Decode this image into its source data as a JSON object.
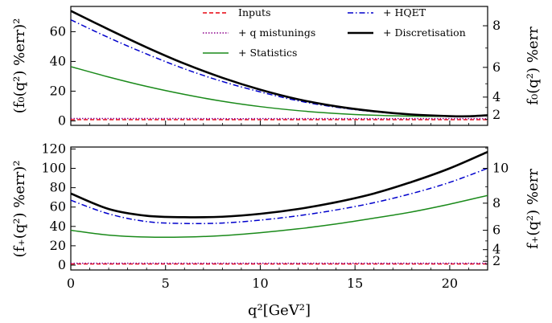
{
  "figure": {
    "xlabel": "q²[GeV²]"
  },
  "legend": {
    "items": [
      {
        "key": "inputs",
        "label": "Inputs"
      },
      {
        "key": "qmis",
        "label": "+ q mistunings"
      },
      {
        "key": "stats",
        "label": "+ Statistics"
      },
      {
        "key": "hqet",
        "label": "+ HQET"
      },
      {
        "key": "disc",
        "label": "+ Discretisation"
      }
    ]
  },
  "chart_data": [
    {
      "type": "line",
      "panel": "top",
      "ylabel": "(f₀(q²) %err)²",
      "ylabel_right": "f₀(q²) %err",
      "xlim": [
        0,
        22
      ],
      "ylim": [
        -3,
        77
      ],
      "xticks": [
        0,
        5,
        10,
        15,
        20
      ],
      "yticks": [
        0,
        20,
        40,
        60
      ],
      "right_ticks": [
        2,
        4,
        6,
        8
      ],
      "x": [
        0,
        2,
        4,
        6,
        8,
        10,
        12,
        14,
        16,
        18,
        20,
        21,
        22
      ],
      "series": [
        {
          "key": "inputs",
          "name": "Inputs",
          "color": "#e8000b",
          "dash": "dashed",
          "values": [
            0.8,
            0.8,
            0.8,
            0.8,
            0.8,
            0.8,
            0.8,
            0.8,
            0.8,
            0.8,
            0.8,
            0.8,
            0.8
          ]
        },
        {
          "key": "qmis",
          "name": "+ q mistunings",
          "color": "#8b008b",
          "dash": "dotted",
          "values": [
            1.6,
            1.6,
            1.6,
            1.6,
            1.5,
            1.5,
            1.5,
            1.5,
            1.5,
            1.5,
            1.5,
            1.5,
            1.5
          ]
        },
        {
          "key": "stats",
          "name": "+ Statistics",
          "color": "#1a8a1a",
          "dash": "solid",
          "values": [
            36.5,
            29.5,
            23.2,
            17.8,
            13.2,
            9.6,
            6.9,
            5.0,
            3.8,
            3.2,
            3.0,
            3.2,
            3.4
          ]
        },
        {
          "key": "hqet",
          "name": "+ HQET",
          "color": "#0000cc",
          "dash": "dashdot",
          "values": [
            68,
            56,
            45,
            35,
            26.5,
            19.5,
            13.5,
            9.2,
            6.2,
            4.2,
            3.1,
            3.0,
            3.5
          ]
        },
        {
          "key": "disc",
          "name": "+ Discretisation",
          "color": "#000000",
          "dash": "solid-thick",
          "values": [
            74,
            61.5,
            49.5,
            38.5,
            29,
            21,
            14.5,
            9.8,
            6.5,
            4.3,
            3.2,
            3.1,
            3.8
          ]
        }
      ]
    },
    {
      "type": "line",
      "panel": "bottom",
      "ylabel": "(f₊(q²) %err)²",
      "ylabel_right": "f₊(q²) %err",
      "xlim": [
        0,
        22
      ],
      "ylim": [
        -5,
        122
      ],
      "xticks": [
        0,
        5,
        10,
        15,
        20
      ],
      "yticks": [
        0,
        20,
        40,
        60,
        80,
        100,
        120
      ],
      "right_ticks": [
        2,
        4,
        6,
        8,
        10
      ],
      "x": [
        0,
        2,
        4,
        6,
        8,
        10,
        12,
        14,
        16,
        18,
        20,
        22
      ],
      "series": [
        {
          "key": "inputs",
          "name": "Inputs",
          "color": "#e8000b",
          "dash": "dashed",
          "values": [
            1.2,
            1.2,
            1.2,
            1.2,
            1.2,
            1.2,
            1.2,
            1.2,
            1.2,
            1.2,
            1.2,
            1.2
          ]
        },
        {
          "key": "qmis",
          "name": "+ q mistunings",
          "color": "#8b008b",
          "dash": "dotted",
          "values": [
            2.0,
            2.0,
            2.0,
            2.0,
            2.0,
            2.0,
            2.0,
            2.0,
            2.0,
            2.0,
            2.0,
            2.0
          ]
        },
        {
          "key": "stats",
          "name": "+ Statistics",
          "color": "#1a8a1a",
          "dash": "solid",
          "values": [
            36,
            31,
            29,
            29,
            30.5,
            33.5,
            37.5,
            42.5,
            48.5,
            55,
            63,
            72
          ]
        },
        {
          "key": "hqet",
          "name": "+ HQET",
          "color": "#0000cc",
          "dash": "dashdot",
          "values": [
            67,
            53,
            45,
            43,
            43.5,
            46.5,
            51,
            57,
            64.5,
            74,
            85.5,
            100
          ]
        },
        {
          "key": "disc",
          "name": "+ Discretisation",
          "color": "#000000",
          "dash": "solid-thick",
          "values": [
            74,
            58,
            51,
            49.5,
            50,
            53,
            58,
            65,
            74,
            86,
            100,
            117
          ]
        }
      ]
    }
  ]
}
